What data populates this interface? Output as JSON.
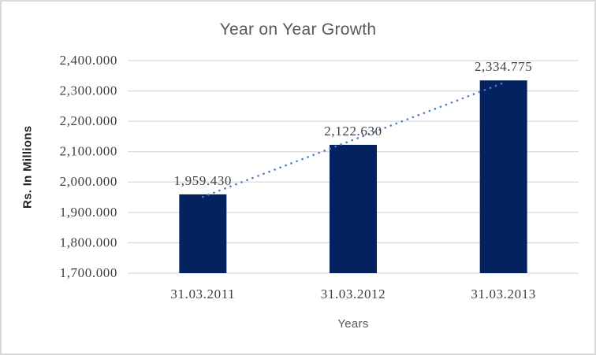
{
  "chart_data": {
    "type": "bar",
    "title": "Year on Year Growth",
    "xlabel": "Years",
    "ylabel": "Rs. In Millions",
    "categories": [
      "31.03.2011",
      "31.03.2012",
      "31.03.2013"
    ],
    "values": [
      1959.43,
      2122.63,
      2334.775
    ],
    "value_labels": [
      "1,959.430",
      "2,122.630",
      "2,334.775"
    ],
    "ylim": [
      1700,
      2400
    ],
    "ytick_step": 100,
    "ytick_values": [
      1700,
      1800,
      1900,
      2000,
      2100,
      2200,
      2300,
      2400
    ],
    "ytick_labels": [
      "1,700.000",
      "1,800.000",
      "1,900.000",
      "2,000.000",
      "2,100.000",
      "2,200.000",
      "2,300.000",
      "2,400.000"
    ],
    "grid": true,
    "legend": false,
    "trendline": {
      "type": "linear",
      "style": "dotted"
    },
    "colors": {
      "bar": "#042160",
      "trendline": "#4a80c4",
      "gridline": "#d9d9d9",
      "tick_text": "#3f3f3f",
      "title_text": "#595959",
      "axis_title_text": "#1f1f1f",
      "xlabel_text": "#595959",
      "frame_border": "#d9d9d9",
      "background": "#ffffff"
    }
  }
}
